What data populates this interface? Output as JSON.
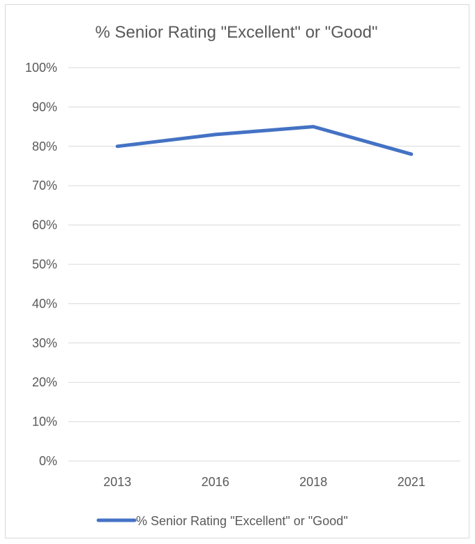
{
  "chart_data": {
    "type": "line",
    "title": "% Senior Rating \"Excellent\" or \"Good\"",
    "categories": [
      "2013",
      "2016",
      "2018",
      "2021"
    ],
    "series": [
      {
        "name": "% Senior Rating \"Excellent\" or \"Good\"",
        "values": [
          80,
          83,
          85,
          78
        ],
        "color": "#4472c4"
      }
    ],
    "y_ticks": [
      "0%",
      "10%",
      "20%",
      "30%",
      "40%",
      "50%",
      "60%",
      "70%",
      "80%",
      "90%",
      "100%"
    ],
    "ylim": [
      0,
      100
    ],
    "grid": true,
    "legend_position": "bottom"
  }
}
